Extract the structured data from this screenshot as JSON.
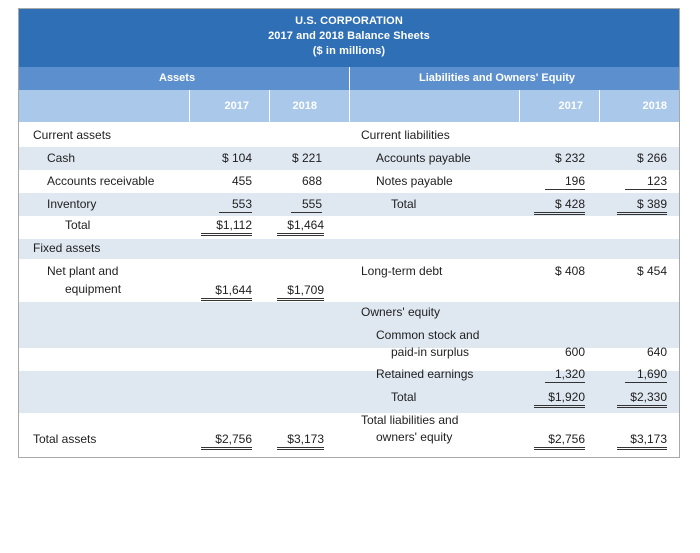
{
  "title": {
    "line1": "U.S. CORPORATION",
    "line2": "2017 and 2018 Balance Sheets",
    "line3": "($ in millions)"
  },
  "headers": {
    "assets": "Assets",
    "liabilities": "Liabilities and Owners' Equity",
    "year1": "2017",
    "year2": "2018"
  },
  "assets": {
    "current_assets": "Current assets",
    "cash": {
      "label": "Cash",
      "v2017": "$ 104",
      "v2018": "$ 221"
    },
    "receivable": {
      "label": "Accounts receivable",
      "v2017": "455",
      "v2018": "688"
    },
    "inventory": {
      "label": "Inventory",
      "v2017": "553",
      "v2018": "555"
    },
    "total": {
      "label": "Total",
      "v2017": "$1,112",
      "v2018": "$1,464"
    },
    "fixed_assets": "Fixed assets",
    "net_plant_line1": "Net plant and",
    "net_plant_line2": "equipment",
    "net_plant": {
      "v2017": "$1,644",
      "v2018": "$1,709"
    },
    "total_assets": {
      "label": "Total assets",
      "v2017": "$2,756",
      "v2018": "$3,173"
    }
  },
  "liabilities": {
    "current_liabilities": "Current liabilities",
    "payable": {
      "label": "Accounts payable",
      "v2017": "$ 232",
      "v2018": "$ 266"
    },
    "notes": {
      "label": "Notes payable",
      "v2017": "196",
      "v2018": "123"
    },
    "total": {
      "label": "Total",
      "v2017": "$ 428",
      "v2018": "$ 389"
    },
    "ltd": {
      "label": "Long-term debt",
      "v2017": "$ 408",
      "v2018": "$ 454"
    },
    "owners_equity": "Owners' equity",
    "common_line1": "Common stock and",
    "common_line2": "paid-in surplus",
    "common": {
      "v2017": "600",
      "v2018": "640"
    },
    "retained": {
      "label": "Retained earnings",
      "v2017": "1,320",
      "v2018": "1,690"
    },
    "eq_total": {
      "label": "Total",
      "v2017": "$1,920",
      "v2018": "$2,330"
    },
    "tle_line1": "Total liabilities and",
    "tle_line2": "owners' equity",
    "tle": {
      "v2017": "$2,756",
      "v2018": "$3,173"
    }
  }
}
